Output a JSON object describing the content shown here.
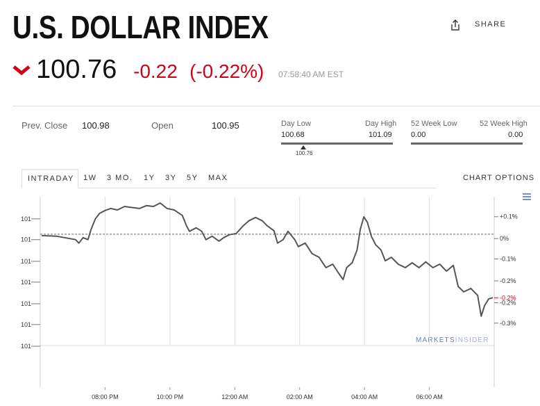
{
  "header": {
    "title": "U.S. DOLLAR INDEX",
    "price": "100.76",
    "change": "-0.22",
    "change_pct": "(-0.22%)",
    "time": "07:58:40 AM EST",
    "share": "SHARE"
  },
  "stats": {
    "prev_close_label": "Prev. Close",
    "prev_close": "100.98",
    "open_label": "Open",
    "open": "100.95",
    "day_low_label": "Day Low",
    "day_low": "100.68",
    "day_high_label": "Day High",
    "day_high": "101.09",
    "day_range_marker": "100.76",
    "week52_low_label": "52 Week Low",
    "week52_low": "0.00",
    "week52_high_label": "52 Week High",
    "week52_high": "0.00"
  },
  "tabs": [
    "INTRADAY",
    "1W",
    "3 MO.",
    "1Y",
    "3Y",
    "5Y",
    "MAX"
  ],
  "chart_options": "CHART OPTIONS",
  "watermark": [
    "MARKETS",
    "INSIDER"
  ],
  "chart_data": {
    "type": "line",
    "color": "#555555",
    "reference_line": 100.98,
    "x": [
      0.04,
      0.51,
      1.09,
      1.19,
      1.32,
      1.47,
      1.57,
      1.7,
      1.83,
      2.0,
      2.17,
      2.38,
      2.6,
      2.85,
      3.06,
      3.28,
      3.49,
      3.7,
      3.91,
      4.13,
      4.38,
      4.51,
      4.6,
      4.81,
      4.98,
      5.11,
      5.3,
      5.51,
      5.66,
      5.83,
      6.04,
      6.26,
      6.43,
      6.64,
      6.85,
      7.0,
      7.21,
      7.32,
      7.49,
      7.64,
      7.85,
      7.96,
      8.17,
      8.38,
      8.6,
      8.81,
      9.02,
      9.23,
      9.34,
      9.45,
      9.62,
      9.77,
      9.87,
      9.98,
      10.09,
      10.21,
      10.34,
      10.51,
      10.64,
      10.83,
      11.04,
      11.26,
      11.47,
      11.68,
      11.89,
      12.11,
      12.32,
      12.53,
      12.74,
      12.89,
      13.06,
      13.28,
      13.49,
      13.6,
      13.7,
      13.83,
      13.96
    ],
    "values": [
      100.975,
      100.973,
      100.961,
      100.949,
      100.968,
      100.961,
      100.997,
      101.033,
      101.052,
      101.062,
      101.069,
      101.064,
      101.076,
      101.072,
      101.069,
      101.079,
      101.076,
      101.088,
      101.069,
      101.064,
      101.045,
      101.009,
      100.99,
      101.002,
      100.99,
      100.961,
      100.973,
      100.956,
      100.968,
      100.978,
      100.982,
      101.009,
      101.026,
      101.038,
      101.026,
      101.009,
      100.992,
      100.949,
      100.961,
      100.99,
      100.961,
      100.937,
      100.949,
      100.913,
      100.9,
      100.864,
      100.876,
      100.84,
      100.823,
      100.864,
      100.881,
      100.925,
      100.997,
      101.04,
      101.021,
      100.973,
      100.944,
      100.925,
      100.888,
      100.9,
      100.876,
      100.864,
      100.881,
      100.864,
      100.884,
      100.864,
      100.876,
      100.852,
      100.872,
      100.799,
      100.78,
      100.792,
      100.768,
      100.696,
      100.732,
      100.756,
      100.76
    ],
    "xlim": [
      0,
      14
    ],
    "xticks": [
      {
        "value": 2,
        "label": "08:00 PM"
      },
      {
        "value": 4,
        "label": "10:00 PM"
      },
      {
        "value": 6,
        "label": "12:00 AM"
      },
      {
        "value": 8,
        "label": "02:00 AM"
      },
      {
        "value": 10,
        "label": "04:00 AM"
      },
      {
        "value": 12,
        "label": "06:00 AM"
      }
    ],
    "ylim": [
      100.45,
      101.1
    ],
    "yticks": [
      {
        "value": 101.033,
        "label": "101"
      },
      {
        "value": 100.961,
        "label": "101"
      },
      {
        "value": 100.886,
        "label": "101"
      },
      {
        "value": 100.814,
        "label": "101"
      },
      {
        "value": 100.739,
        "label": "101"
      },
      {
        "value": 100.667,
        "label": "101"
      },
      {
        "value": 100.592,
        "label": "101"
      }
    ],
    "y2lim": [
      -0.525,
      0.119
    ],
    "y2ticks": [
      {
        "value": 0.06,
        "label": "+0.1%"
      },
      {
        "value": -0.015,
        "label": "0%"
      },
      {
        "value": -0.085,
        "label": "-0.1%"
      },
      {
        "value": -0.16,
        "label": "-0.2%"
      },
      {
        "value": -0.235,
        "label": "-0.2%"
      },
      {
        "value": -0.305,
        "label": "-0.3%"
      }
    ],
    "y2_current": {
      "value": -0.218,
      "label": "-0.2%"
    },
    "current_color": "#d0021b",
    "grid": true
  }
}
